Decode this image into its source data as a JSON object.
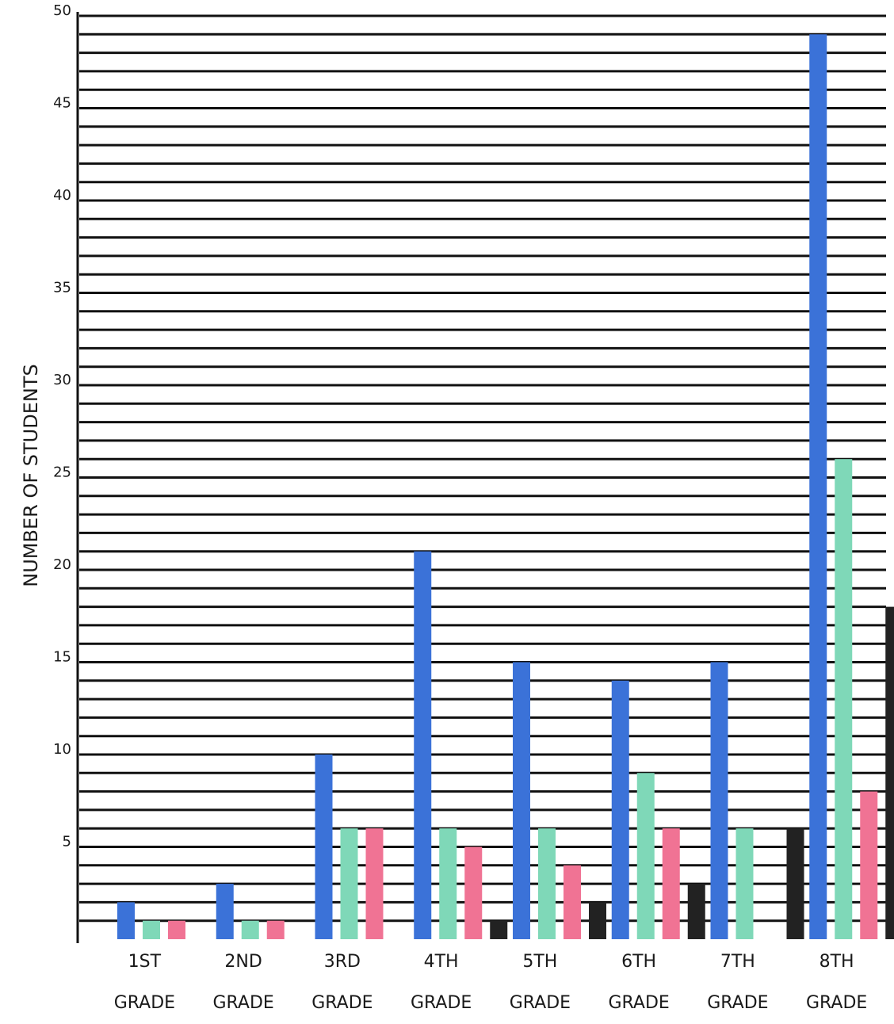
{
  "chart_data": {
    "type": "bar",
    "y_label": "NUMBER OF STUDENTS",
    "categories": [
      "1ST\nGRADE",
      "2ND\nGRADE",
      "3RD\nGRADE",
      "4TH\nGRADE",
      "5TH\nGRADE",
      "6TH\nGRADE",
      "7TH\nGRADE",
      "8TH\nGRADE"
    ],
    "series": [
      {
        "color": "#3b72d8",
        "values": [
          2,
          3,
          10,
          21,
          15,
          14,
          15,
          49
        ]
      },
      {
        "color": "#7fd8b8",
        "values": [
          1,
          1,
          6,
          6,
          6,
          9,
          6,
          26
        ]
      },
      {
        "color": "#f07394",
        "values": [
          1,
          1,
          6,
          5,
          4,
          6,
          null,
          8
        ]
      },
      {
        "color": "#222222",
        "values": [
          null,
          null,
          null,
          1,
          2,
          3,
          6,
          18
        ]
      }
    ],
    "ylim": [
      0,
      50
    ],
    "yticks": [
      5,
      10,
      15,
      20,
      25,
      30,
      35,
      40,
      45,
      50
    ],
    "grid_lines": [
      1,
      2,
      3,
      4,
      5,
      6,
      7,
      8,
      9,
      10,
      11,
      12,
      13,
      14,
      15,
      16,
      17,
      18,
      19,
      20,
      21,
      22,
      23,
      24,
      25,
      26,
      27,
      28,
      29,
      30,
      31,
      32,
      33,
      34,
      35,
      36,
      37,
      38,
      39,
      40,
      41,
      42,
      43,
      44,
      45,
      46,
      47,
      48,
      49,
      50
    ],
    "grid": true
  }
}
